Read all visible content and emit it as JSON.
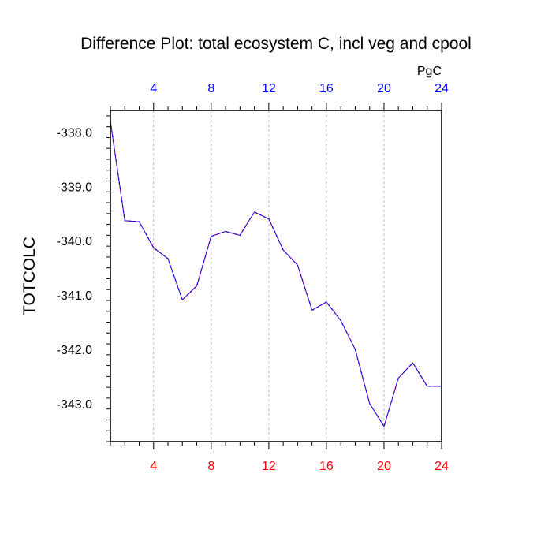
{
  "chart_data": {
    "type": "line",
    "title": "Difference Plot: total ecosystem C, incl veg and cpool",
    "ylabel": "TOTCOLC",
    "units_label": "PgC",
    "xlim": [
      1,
      24
    ],
    "ylim": [
      -343.7,
      -337.6
    ],
    "x_ticks": [
      4,
      8,
      12,
      16,
      20,
      24
    ],
    "x_tick_labels": [
      "4",
      "8",
      "12",
      "16",
      "20",
      "24"
    ],
    "y_ticks": [
      -338,
      -339,
      -340,
      -341,
      -342,
      -343
    ],
    "y_tick_labels": [
      "-338.0",
      "-339.0",
      "-340.0",
      "-341.0",
      "-342.0",
      "-343.0"
    ],
    "grid": "vertical-dashed",
    "colors": {
      "line": "#7b00a8",
      "line_dash": "#0000ff",
      "top_ticks": "#0000ff",
      "bottom_ticks": "#ff0000",
      "grid": "#aaaaaa"
    },
    "x": [
      1,
      2,
      3,
      4,
      5,
      6,
      7,
      8,
      9,
      10,
      11,
      12,
      13,
      14,
      15,
      16,
      17,
      18,
      19,
      20,
      21,
      22,
      23,
      24
    ],
    "values": [
      -337.8,
      -339.63,
      -339.65,
      -340.13,
      -340.33,
      -341.09,
      -340.83,
      -339.92,
      -339.83,
      -339.9,
      -339.47,
      -339.6,
      -340.17,
      -340.45,
      -341.28,
      -341.13,
      -341.47,
      -342.0,
      -343.0,
      -343.42,
      -342.53,
      -342.25,
      -342.68,
      -342.68
    ]
  }
}
